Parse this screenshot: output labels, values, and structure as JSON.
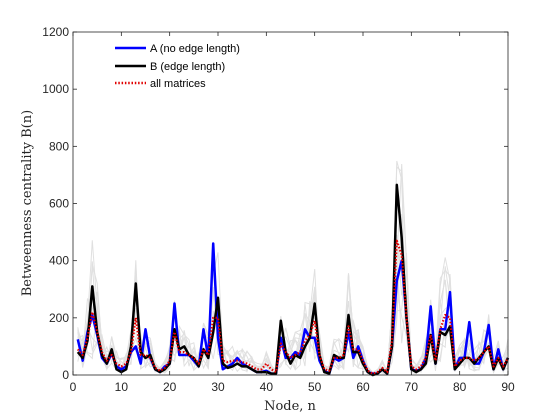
{
  "chart_data": {
    "type": "line",
    "xlabel": "Node, n",
    "ylabel": "Betweenness centrality B(n)",
    "xlim": [
      0,
      90
    ],
    "ylim": [
      0,
      1200
    ],
    "xticks": [
      0,
      10,
      20,
      30,
      40,
      50,
      60,
      70,
      80,
      90
    ],
    "yticks": [
      0,
      200,
      400,
      600,
      800,
      1000,
      1200
    ],
    "grid": false,
    "legend": "top-left",
    "background_series_color": "#e0e0e0",
    "background_series_count": 10,
    "series": [
      {
        "name": "A (no edge length)",
        "color": "#0000ff",
        "style": "solid",
        "x": [
          1,
          2,
          3,
          4,
          5,
          6,
          7,
          8,
          9,
          10,
          11,
          12,
          13,
          14,
          15,
          16,
          17,
          18,
          19,
          20,
          21,
          22,
          23,
          24,
          25,
          26,
          27,
          28,
          29,
          30,
          31,
          32,
          33,
          34,
          35,
          36,
          37,
          38,
          39,
          40,
          41,
          42,
          43,
          44,
          45,
          46,
          47,
          48,
          49,
          50,
          51,
          52,
          53,
          54,
          55,
          56,
          57,
          58,
          59,
          60,
          61,
          62,
          63,
          64,
          65,
          66,
          67,
          68,
          69,
          70,
          71,
          72,
          73,
          74,
          75,
          76,
          77,
          78,
          79,
          80,
          81,
          82,
          83,
          84,
          85,
          86,
          87,
          88,
          89,
          90
        ],
        "values": [
          125,
          50,
          150,
          210,
          140,
          60,
          40,
          75,
          30,
          20,
          30,
          80,
          100,
          40,
          160,
          60,
          20,
          10,
          30,
          40,
          250,
          70,
          70,
          70,
          50,
          30,
          160,
          60,
          460,
          130,
          20,
          30,
          40,
          60,
          40,
          30,
          20,
          10,
          10,
          15,
          5,
          5,
          130,
          60,
          60,
          80,
          70,
          160,
          130,
          130,
          50,
          15,
          5,
          60,
          50,
          60,
          150,
          60,
          100,
          50,
          10,
          5,
          5,
          20,
          5,
          100,
          330,
          400,
          200,
          20,
          15,
          20,
          60,
          240,
          40,
          160,
          160,
          290,
          20,
          60,
          60,
          185,
          40,
          40,
          80,
          175,
          20,
          90,
          20,
          60
        ]
      },
      {
        "name": "B (edge length)",
        "color": "#000000",
        "style": "solid",
        "x": [
          1,
          2,
          3,
          4,
          5,
          6,
          7,
          8,
          9,
          10,
          11,
          12,
          13,
          14,
          15,
          16,
          17,
          18,
          19,
          20,
          21,
          22,
          23,
          24,
          25,
          26,
          27,
          28,
          29,
          30,
          31,
          32,
          33,
          34,
          35,
          36,
          37,
          38,
          39,
          40,
          41,
          42,
          43,
          44,
          45,
          46,
          47,
          48,
          49,
          50,
          51,
          52,
          53,
          54,
          55,
          56,
          57,
          58,
          59,
          60,
          61,
          62,
          63,
          64,
          65,
          66,
          67,
          68,
          69,
          70,
          71,
          72,
          73,
          74,
          75,
          76,
          77,
          78,
          79,
          80,
          81,
          82,
          83,
          84,
          85,
          86,
          87,
          88,
          89,
          90
        ],
        "values": [
          80,
          60,
          120,
          310,
          150,
          70,
          40,
          90,
          20,
          10,
          20,
          100,
          320,
          80,
          60,
          70,
          20,
          10,
          20,
          40,
          160,
          90,
          100,
          70,
          60,
          30,
          90,
          60,
          150,
          270,
          40,
          25,
          30,
          40,
          30,
          30,
          20,
          10,
          10,
          10,
          5,
          5,
          190,
          80,
          40,
          70,
          60,
          100,
          130,
          250,
          70,
          10,
          5,
          70,
          60,
          60,
          210,
          80,
          80,
          40,
          10,
          0,
          5,
          20,
          5,
          100,
          665,
          480,
          200,
          20,
          10,
          20,
          40,
          140,
          40,
          150,
          140,
          170,
          20,
          40,
          60,
          60,
          40,
          60,
          80,
          100,
          20,
          60,
          20,
          60
        ]
      },
      {
        "name": "all matrices",
        "color": "#e00000",
        "style": "dotted",
        "x": [
          1,
          2,
          3,
          4,
          5,
          6,
          7,
          8,
          9,
          10,
          11,
          12,
          13,
          14,
          15,
          16,
          17,
          18,
          19,
          20,
          21,
          22,
          23,
          24,
          25,
          26,
          27,
          28,
          29,
          30,
          31,
          32,
          33,
          34,
          35,
          36,
          37,
          38,
          39,
          40,
          41,
          42,
          43,
          44,
          45,
          46,
          47,
          48,
          49,
          50,
          51,
          52,
          53,
          54,
          55,
          56,
          57,
          58,
          59,
          60,
          61,
          62,
          63,
          64,
          65,
          66,
          67,
          68,
          69,
          70,
          71,
          72,
          73,
          74,
          75,
          76,
          77,
          78,
          79,
          80,
          81,
          82,
          83,
          84,
          85,
          86,
          87,
          88,
          89,
          90
        ],
        "values": [
          90,
          70,
          130,
          220,
          150,
          80,
          50,
          70,
          40,
          30,
          40,
          80,
          200,
          70,
          70,
          60,
          25,
          15,
          25,
          50,
          150,
          80,
          80,
          70,
          60,
          40,
          90,
          70,
          200,
          200,
          50,
          45,
          50,
          50,
          45,
          40,
          30,
          20,
          20,
          40,
          20,
          10,
          110,
          80,
          60,
          70,
          80,
          120,
          140,
          190,
          70,
          20,
          15,
          60,
          60,
          70,
          170,
          90,
          90,
          50,
          15,
          5,
          10,
          25,
          10,
          120,
          470,
          420,
          200,
          30,
          20,
          30,
          60,
          140,
          50,
          160,
          210,
          200,
          30,
          50,
          60,
          60,
          50,
          60,
          80,
          100,
          30,
          60,
          30,
          60
        ]
      }
    ]
  }
}
